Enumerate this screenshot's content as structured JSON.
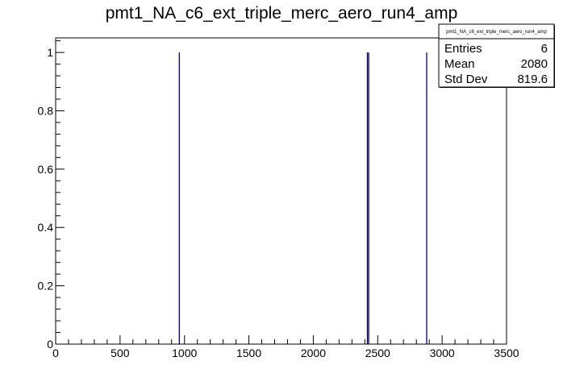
{
  "chart_data": {
    "type": "bar",
    "title": "pmt1_NA_c6_ext_triple_merc_aero_run4_amp",
    "xlabel": "",
    "ylabel": "",
    "xlim": [
      0,
      3500
    ],
    "ylim": [
      0,
      1.05
    ],
    "x_major_ticks": [
      0,
      500,
      1000,
      1500,
      2000,
      2500,
      3000,
      3500
    ],
    "x_tick_labels": [
      "0",
      "500",
      "1000",
      "1500",
      "2000",
      "2500",
      "3000",
      "3500"
    ],
    "y_major_ticks": [
      0,
      0.2,
      0.4,
      0.6,
      0.8,
      1
    ],
    "y_tick_labels": [
      "0",
      "0.2",
      "0.4",
      "0.6",
      "0.8",
      "1"
    ],
    "grid": false,
    "legend": "none",
    "line_color": "#000080",
    "x": [
      960,
      2420,
      2430,
      2880
    ],
    "values": [
      1,
      1,
      1,
      1
    ],
    "stats": {
      "title": "pmt1_NA_c6_ext_triple_merc_aero_run4_amp",
      "position": "top-right",
      "rows": [
        {
          "label": "Entries",
          "value": "6"
        },
        {
          "label": "Mean",
          "value": "2080"
        },
        {
          "label": "Std Dev",
          "value": "819.6"
        }
      ]
    }
  }
}
